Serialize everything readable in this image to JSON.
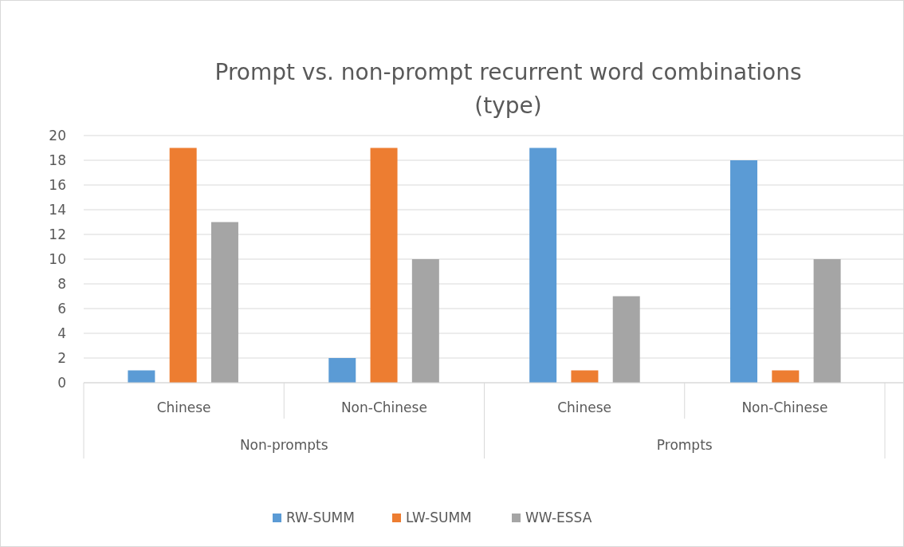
{
  "chart_data": {
    "type": "bar",
    "title": "Prompt vs. non-prompt recurrent word combinations (type)",
    "categories": [
      "Chinese",
      "Non-Chinese",
      "Chinese",
      "Non-Chinese"
    ],
    "series": [
      {
        "name": "RW-SUMM",
        "color": "#5b9bd5",
        "values": [
          1,
          2,
          19,
          18
        ]
      },
      {
        "name": "LW-SUMM",
        "color": "#ed7d31",
        "values": [
          19,
          19,
          1,
          1
        ]
      },
      {
        "name": "WW-ESSA",
        "color": "#a5a5a5",
        "values": [
          13,
          10,
          7,
          10
        ]
      }
    ],
    "annotations": [
      "Non-prompts",
      "Prompts"
    ],
    "ylim": [
      0,
      20
    ],
    "yticks": [
      0,
      2,
      4,
      6,
      8,
      10,
      12,
      14,
      16,
      18,
      20
    ],
    "grid": "y",
    "legend": "bottom"
  }
}
